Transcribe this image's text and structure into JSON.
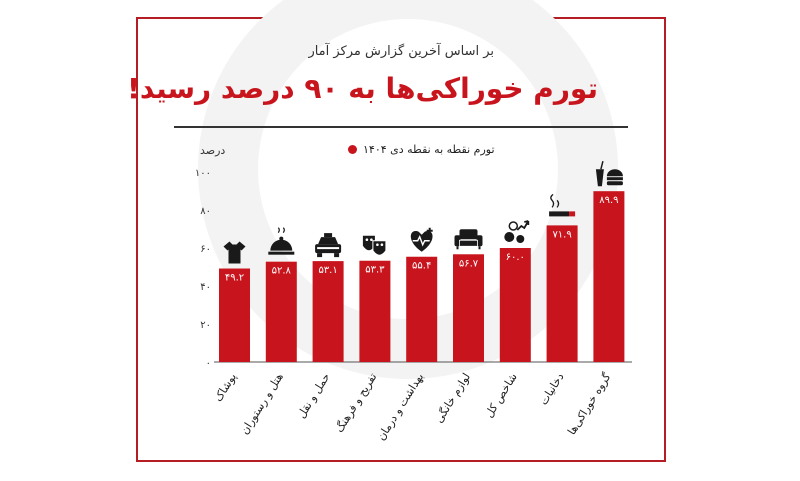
{
  "header": {
    "subtitle": "بر اساس آخرین گزارش مرکز آمار",
    "title": "تورم خوراکی‌ها به ۹۰ درصد رسید!",
    "y_unit": "درصد",
    "legend_label": "تورم نقطه به نقطه دی ۱۴۰۴"
  },
  "colors": {
    "bar": "#c8151d",
    "frame": "#b51d24",
    "text": "#333333"
  },
  "chart_data": {
    "type": "bar",
    "title": "تورم خوراکی‌ها به ۹۰ درصد رسید!",
    "ylabel": "درصد",
    "ylim": [
      0,
      100
    ],
    "yticks": [
      0,
      20,
      40,
      60,
      80,
      100
    ],
    "ytick_labels": [
      "۰",
      "۲۰",
      "۴۰",
      "۶۰",
      "۸۰",
      "۱۰۰"
    ],
    "grid": false,
    "legend_position": "top",
    "categories": [
      "پوشاک",
      "هتل و رستوران",
      "حمل و نقل",
      "تفریح و فرهنگ",
      "بهداشت و درمان",
      "لوازم خانگی",
      "شاخص کل",
      "دخانیات",
      "گروه خوراکی‌ها"
    ],
    "series": [
      {
        "name": "تورم نقطه به نقطه دی ۱۴۰۴",
        "values": [
          49.2,
          52.8,
          53.1,
          53.3,
          55.4,
          56.7,
          60.0,
          71.9,
          89.9
        ],
        "value_labels": [
          "۴۹.۲",
          "۵۲.۸",
          "۵۳.۱",
          "۵۳.۳",
          "۵۵.۴",
          "۵۶.۷",
          "۶۰.۰",
          "۷۱.۹",
          "۸۹.۹"
        ]
      }
    ],
    "category_icons": [
      "tshirt-icon",
      "cloche-icon",
      "taxi-icon",
      "theater-masks-icon",
      "heart-health-icon",
      "sofa-icon",
      "coins-chart-icon",
      "cigarette-icon",
      "fastfood-icon"
    ]
  }
}
